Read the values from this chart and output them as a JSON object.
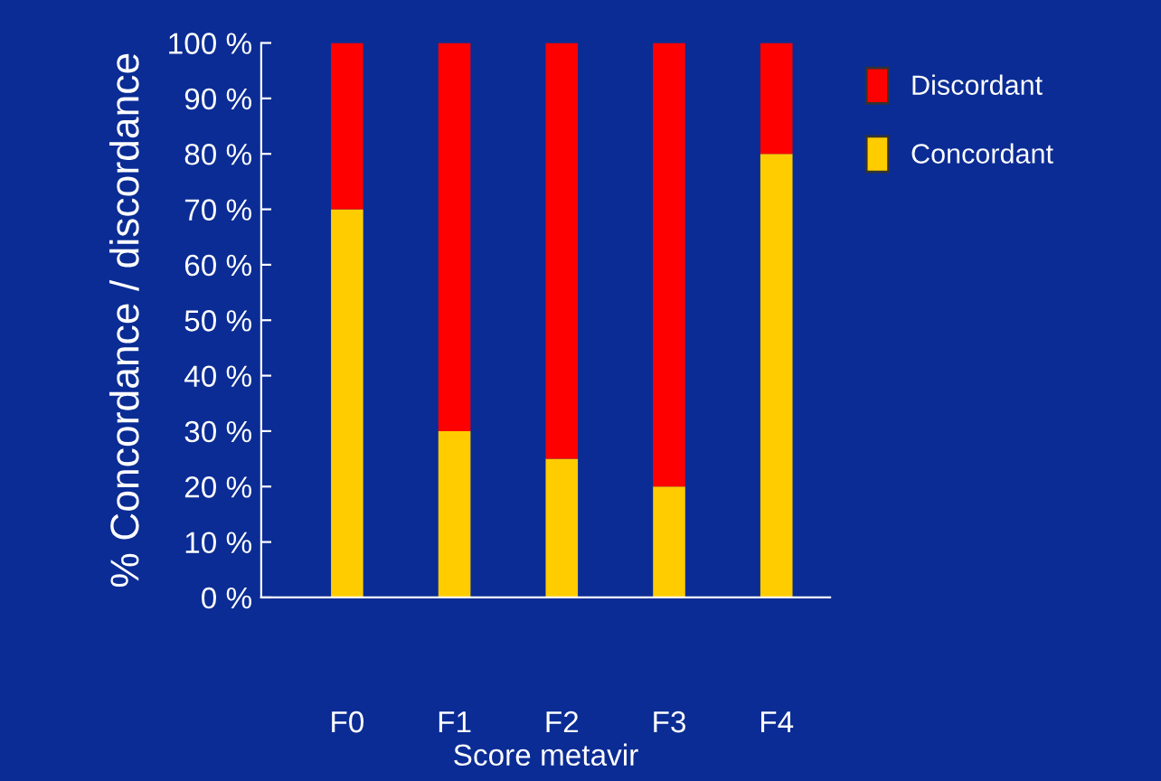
{
  "chart_data": {
    "type": "bar",
    "stacked": true,
    "xlabel": "Score metavir",
    "ylabel": "% Concordance / discordance",
    "categories": [
      "F0",
      "F1",
      "F2",
      "F3",
      "F4"
    ],
    "series": [
      {
        "name": "Concordant",
        "color": "#ffcc00",
        "values": [
          70,
          30,
          25,
          20,
          80
        ]
      },
      {
        "name": "Discordant",
        "color": "#ff0000",
        "values": [
          30,
          70,
          75,
          80,
          20
        ]
      }
    ],
    "ylim": [
      0,
      100
    ],
    "yticks": [
      {
        "value": 0,
        "label": "0 %"
      },
      {
        "value": 10,
        "label": "10 %"
      },
      {
        "value": 20,
        "label": "20 %"
      },
      {
        "value": 30,
        "label": "30 %"
      },
      {
        "value": 40,
        "label": "40 %"
      },
      {
        "value": 50,
        "label": "50 %"
      },
      {
        "value": 60,
        "label": "60 %"
      },
      {
        "value": 70,
        "label": "70 %"
      },
      {
        "value": 80,
        "label": "80 %"
      },
      {
        "value": 90,
        "label": "90 %"
      },
      {
        "value": 100,
        "label": "100 %"
      }
    ],
    "grid": false,
    "legend": "top right"
  }
}
